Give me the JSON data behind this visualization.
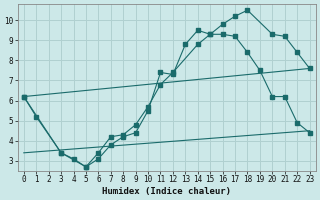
{
  "xlabel": "Humidex (Indice chaleur)",
  "background_color": "#cce8e8",
  "grid_color": "#b0d0d0",
  "line_color": "#1a6b6b",
  "xlim": [
    -0.5,
    23.5
  ],
  "ylim": [
    2.5,
    10.8
  ],
  "xticks": [
    0,
    1,
    2,
    3,
    4,
    5,
    6,
    7,
    8,
    9,
    10,
    11,
    12,
    13,
    14,
    15,
    16,
    17,
    18,
    19,
    20,
    21,
    22,
    23
  ],
  "yticks": [
    3,
    4,
    5,
    6,
    7,
    8,
    9,
    10
  ],
  "lines": [
    {
      "x": [
        0,
        1,
        3,
        4,
        5,
        6,
        7,
        8,
        9,
        10,
        11,
        12,
        13,
        14,
        15,
        16,
        17,
        18,
        20,
        21,
        22,
        23
      ],
      "y": [
        6.2,
        5.2,
        3.4,
        3.1,
        2.7,
        3.1,
        3.8,
        4.2,
        4.4,
        5.5,
        7.4,
        7.3,
        8.8,
        9.5,
        9.3,
        9.8,
        10.2,
        10.5,
        9.3,
        9.2,
        8.4,
        7.6
      ],
      "markers": true
    },
    {
      "x": [
        0,
        3,
        5,
        6,
        7,
        8,
        9,
        10,
        11,
        12,
        14,
        15,
        16,
        17,
        18,
        19,
        20,
        21,
        22,
        23
      ],
      "y": [
        6.2,
        3.4,
        2.7,
        3.4,
        4.2,
        4.3,
        4.8,
        5.7,
        6.8,
        7.4,
        8.8,
        9.3,
        9.3,
        9.2,
        8.4,
        7.5,
        6.2,
        6.2,
        4.9,
        4.4
      ],
      "markers": true
    },
    {
      "x": [
        0,
        23
      ],
      "y": [
        6.2,
        7.6
      ],
      "markers": false
    },
    {
      "x": [
        0,
        23
      ],
      "y": [
        3.4,
        4.5
      ],
      "markers": false
    }
  ]
}
